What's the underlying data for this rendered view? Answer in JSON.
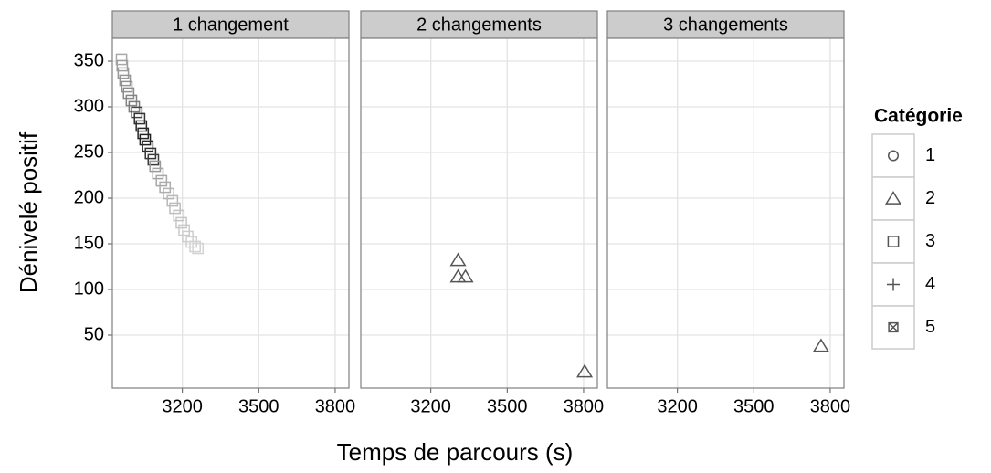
{
  "xlabel": "Temps de parcours (s)",
  "ylabel": "Dénivelé positif",
  "legend": {
    "title": "Catégorie",
    "items": [
      "1",
      "2",
      "3",
      "4",
      "5"
    ],
    "shapes": [
      "circle",
      "triangle",
      "square",
      "plus",
      "square-cross"
    ]
  },
  "chart_data": [
    {
      "type": "scatter",
      "title": "1 changement",
      "shape": "square",
      "x": [
        2961,
        2964,
        2968,
        2975,
        2982,
        2989,
        3000,
        3011,
        3021,
        3032,
        3039,
        3046,
        3054,
        3064,
        3075,
        3086,
        3093,
        3104,
        3118,
        3132,
        3146,
        3161,
        3171,
        3186,
        3196,
        3207,
        3221,
        3236,
        3250,
        3261
      ],
      "y": [
        352,
        345,
        337,
        329,
        322,
        315,
        307,
        300,
        294,
        287,
        279,
        271,
        264,
        257,
        249,
        242,
        235,
        227,
        219,
        212,
        205,
        197,
        189,
        181,
        173,
        165,
        158,
        152,
        147,
        145
      ],
      "colors": [
        "#a8a8a8",
        "#a0a0a0",
        "#999999",
        "#959595",
        "#8f8f8f",
        "#8a8a8a",
        "#858585",
        "#7a7a7a",
        "#444444",
        "#333333",
        "#2a2a2a",
        "#262626",
        "#222222",
        "#2a2a2a",
        "#333333",
        "#3a3a3a",
        "#9a9a9a",
        "#a2a2a2",
        "#a8a8a8",
        "#adadad",
        "#b3b3b3",
        "#b8b8b8",
        "#bdbdbd",
        "#c2c2c2",
        "#c6c6c6",
        "#cacaca",
        "#cdcdcd",
        "#d0d0d0",
        "#d2d2d2",
        "#d4d4d4"
      ],
      "xlim": [
        2925,
        3854
      ],
      "ylim": [
        -8,
        375
      ],
      "xticks": [
        3200,
        3500,
        3800
      ],
      "yticks": [
        50,
        100,
        150,
        200,
        250,
        300,
        350
      ],
      "grid": true
    },
    {
      "type": "scatter",
      "title": "2 changements",
      "shape": "triangle",
      "x": [
        3307,
        3307,
        3336,
        3804
      ],
      "y": [
        132,
        114,
        114,
        10
      ],
      "colors": [
        "#555555",
        "#555555",
        "#555555",
        "#555555"
      ],
      "xlim": [
        2925,
        3854
      ],
      "ylim": [
        -8,
        375
      ],
      "xticks": [
        3200,
        3500,
        3800
      ],
      "yticks": [
        50,
        100,
        150,
        200,
        250,
        300,
        350
      ],
      "grid": true
    },
    {
      "type": "scatter",
      "title": "3 changements",
      "shape": "triangle",
      "x": [
        3764
      ],
      "y": [
        38
      ],
      "colors": [
        "#555555"
      ],
      "xlim": [
        2925,
        3854
      ],
      "ylim": [
        -8,
        375
      ],
      "xticks": [
        3200,
        3500,
        3800
      ],
      "yticks": [
        50,
        100,
        150,
        200,
        250,
        300,
        350
      ],
      "grid": true
    }
  ]
}
